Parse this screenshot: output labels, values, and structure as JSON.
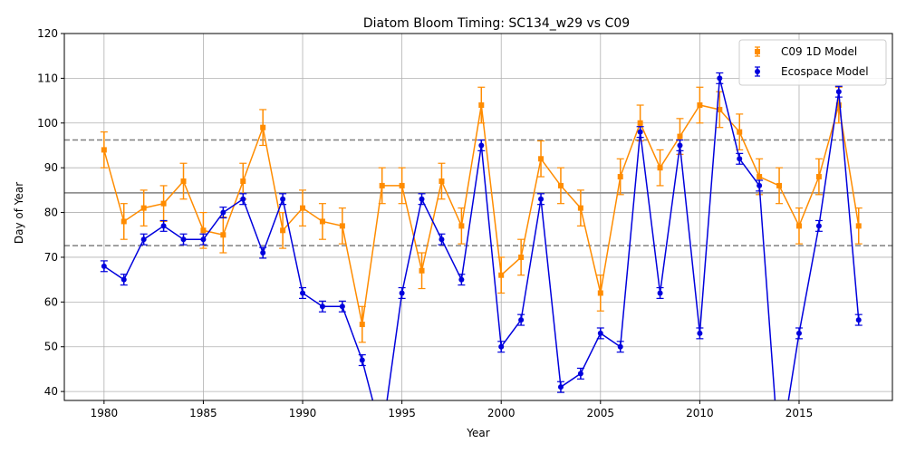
{
  "chart_data": {
    "type": "line",
    "title": "Diatom Bloom Timing: SC134_w29 vs C09",
    "xlabel": "Year",
    "ylabel": "Day of Year",
    "xlim": [
      1978,
      2019.7
    ],
    "ylim": [
      38,
      120
    ],
    "xticks": [
      1980,
      1985,
      1990,
      1995,
      2000,
      2005,
      2010,
      2015
    ],
    "yticks": [
      40,
      50,
      60,
      70,
      80,
      90,
      100,
      110,
      120
    ],
    "grid": true,
    "legend_position": "top-right",
    "x": [
      1980,
      1981,
      1982,
      1983,
      1984,
      1985,
      1986,
      1987,
      1988,
      1989,
      1990,
      1991,
      1992,
      1993,
      1994,
      1995,
      1996,
      1997,
      1998,
      1999,
      2000,
      2001,
      2002,
      2003,
      2004,
      2005,
      2006,
      2007,
      2008,
      2009,
      2010,
      2011,
      2012,
      2013,
      2014,
      2015,
      2016,
      2017,
      2018
    ],
    "series": [
      {
        "name": "C09 1D Model",
        "color": "#ff8c00",
        "marker": "square",
        "values": [
          94,
          78,
          81,
          82,
          87,
          76,
          75,
          87,
          99,
          76,
          81,
          78,
          77,
          55,
          86,
          86,
          67,
          87,
          77,
          104,
          66,
          70,
          92,
          86,
          81,
          62,
          88,
          100,
          90,
          97,
          104,
          103,
          98,
          88,
          86,
          77,
          88,
          104,
          77
        ],
        "error": 4
      },
      {
        "name": "Ecospace Model",
        "color": "#0000dd",
        "marker": "circle",
        "values": [
          68,
          65,
          74,
          77,
          74,
          74,
          80,
          83,
          71,
          83,
          62,
          59,
          59,
          47,
          30,
          62,
          83,
          74,
          65,
          95,
          50,
          56,
          83,
          41,
          44,
          53,
          50,
          98,
          62,
          95,
          53,
          110,
          92,
          86,
          25,
          53,
          77,
          107,
          56
        ],
        "error": 1.2
      }
    ],
    "reference_lines": [
      {
        "value": 84.4,
        "style": "solid",
        "color": "#808080"
      },
      {
        "value": 96.2,
        "style": "dashed",
        "color": "#808080"
      },
      {
        "value": 72.6,
        "style": "dashed",
        "color": "#808080"
      }
    ]
  }
}
